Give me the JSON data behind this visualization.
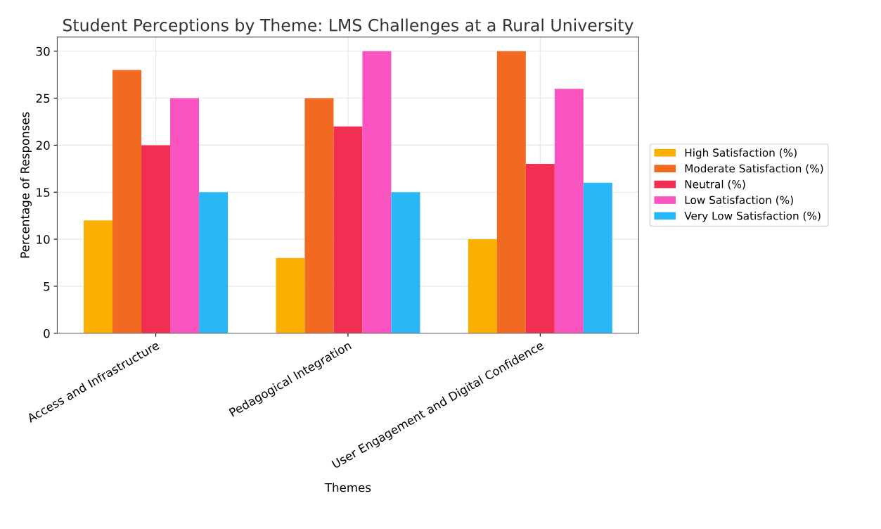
{
  "chart_data": {
    "type": "bar",
    "title": "Student Perceptions by Theme: LMS Challenges at a Rural University",
    "xlabel": "Themes",
    "ylabel": "Percentage of Responses",
    "categories": [
      "Access and Infrastructure",
      "Pedagogical Integration",
      "User Engagement and Digital Confidence"
    ],
    "series": [
      {
        "name": "High Satisfaction (%)",
        "color": "#fbaf00",
        "values": [
          12,
          8,
          10
        ]
      },
      {
        "name": "Moderate Satisfaction (%)",
        "color": "#f26a21",
        "values": [
          28,
          25,
          30
        ]
      },
      {
        "name": "Neutral (%)",
        "color": "#f22e52",
        "values": [
          20,
          22,
          18
        ]
      },
      {
        "name": "Low Satisfaction (%)",
        "color": "#f954bf",
        "values": [
          25,
          30,
          26
        ]
      },
      {
        "name": "Very Low Satisfaction (%)",
        "color": "#2ab7f5",
        "values": [
          15,
          15,
          16
        ]
      }
    ],
    "ylim": [
      0,
      31.5
    ],
    "yticks": [
      0,
      5,
      10,
      15,
      20,
      25,
      30
    ],
    "grid": true,
    "legend": "right"
  }
}
